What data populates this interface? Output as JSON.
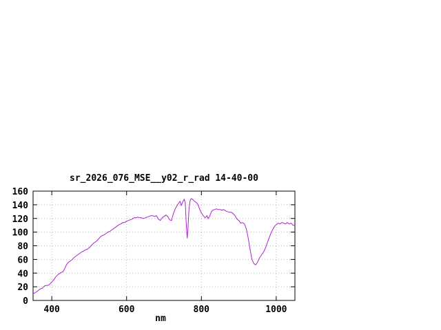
{
  "page": {
    "background": "#ffffff"
  },
  "chart_data": {
    "type": "line",
    "title": "sr_2026_076_MSE__y02_r_rad 14-40-00",
    "xlabel": "nm",
    "ylabel": "",
    "xlim": [
      350,
      1050
    ],
    "ylim": [
      0,
      160
    ],
    "xticks": [
      400,
      600,
      800,
      1000
    ],
    "yticks": [
      0,
      20,
      40,
      60,
      80,
      100,
      120,
      140,
      160
    ],
    "grid": true,
    "legend": "none",
    "line_color": "#aa22cc",
    "grid_color": "#b8b8b8",
    "axis_color": "#000000",
    "x": [
      350,
      355,
      360,
      365,
      370,
      375,
      380,
      385,
      390,
      395,
      400,
      405,
      410,
      415,
      420,
      425,
      430,
      435,
      440,
      445,
      450,
      455,
      460,
      465,
      470,
      475,
      480,
      485,
      490,
      495,
      500,
      505,
      510,
      515,
      520,
      525,
      530,
      535,
      540,
      545,
      550,
      555,
      560,
      565,
      570,
      575,
      580,
      585,
      590,
      595,
      600,
      605,
      610,
      615,
      620,
      625,
      630,
      635,
      640,
      645,
      650,
      655,
      660,
      665,
      670,
      675,
      680,
      685,
      690,
      695,
      700,
      705,
      710,
      715,
      720,
      725,
      730,
      735,
      740,
      743,
      746,
      750,
      754,
      757,
      760,
      762,
      764,
      767,
      770,
      773,
      776,
      780,
      785,
      790,
      795,
      800,
      805,
      810,
      815,
      818,
      822,
      826,
      830,
      835,
      840,
      845,
      850,
      855,
      860,
      865,
      870,
      875,
      880,
      885,
      890,
      895,
      900,
      905,
      910,
      915,
      920,
      925,
      930,
      935,
      940,
      945,
      950,
      955,
      960,
      965,
      968,
      972,
      976,
      980,
      985,
      990,
      995,
      1000,
      1005,
      1010,
      1015,
      1020,
      1025,
      1030,
      1035,
      1040,
      1045,
      1050
    ],
    "y": [
      10,
      11,
      13,
      15,
      17,
      18,
      21,
      22,
      22,
      24,
      27,
      30,
      34,
      37,
      39,
      41,
      42,
      47,
      53,
      56,
      58,
      60,
      63,
      65,
      67,
      69,
      71,
      72,
      74,
      75,
      77,
      80,
      83,
      85,
      87,
      90,
      93,
      95,
      96,
      98,
      100,
      101,
      103,
      105,
      107,
      109,
      111,
      112,
      114,
      114,
      116,
      117,
      118,
      119,
      121,
      121,
      122,
      121,
      121,
      120,
      121,
      122,
      123,
      124,
      124,
      123,
      124,
      119,
      117,
      121,
      123,
      125,
      123,
      118,
      117,
      127,
      134,
      139,
      143,
      145,
      139,
      144,
      148,
      143,
      106,
      91,
      104,
      135,
      147,
      149,
      148,
      146,
      144,
      141,
      134,
      128,
      124,
      121,
      124,
      120,
      123,
      129,
      132,
      133,
      134,
      133,
      133,
      132,
      133,
      131,
      130,
      129,
      129,
      127,
      124,
      119,
      117,
      113,
      114,
      112,
      105,
      92,
      75,
      60,
      54,
      52,
      56,
      62,
      66,
      70,
      73,
      78,
      84,
      90,
      97,
      103,
      108,
      111,
      113,
      112,
      114,
      113,
      112,
      114,
      112,
      113,
      110,
      110
    ]
  }
}
